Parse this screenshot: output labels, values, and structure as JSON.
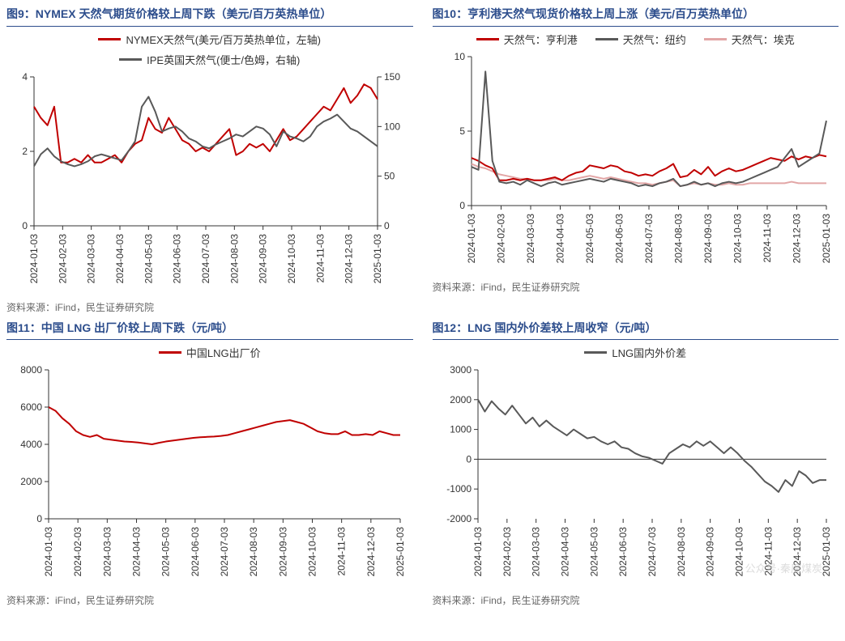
{
  "global": {
    "source_text": "资料来源：iFind，民生证券研究院",
    "watermark": "公众号·秦度煤炭",
    "xcats": [
      "2024-01-03",
      "2024-02-03",
      "2024-03-03",
      "2024-04-03",
      "2024-05-03",
      "2024-06-03",
      "2024-07-03",
      "2024-08-03",
      "2024-09-03",
      "2024-10-03",
      "2024-11-03",
      "2024-12-03",
      "2025-01-03"
    ],
    "axis_color": "#333333",
    "tick_color": "#333333",
    "font_axis": 12,
    "font_title": 14,
    "font_legend": 13,
    "line_width": 2
  },
  "chart9": {
    "title": "图9：NYMEX 天然气期货价格较上周下跌（美元/百万英热单位）",
    "type": "line-dual-axis",
    "legend": [
      {
        "label": "NYMEX天然气(美元/百万英热单位，左轴)",
        "color": "#c00000"
      },
      {
        "label": "IPE英国天然气(便士/色姆，右轴)",
        "color": "#595959"
      }
    ],
    "y_left": {
      "min": 0,
      "max": 4,
      "ticks": [
        0,
        2,
        4
      ]
    },
    "y_right": {
      "min": 0,
      "max": 150,
      "ticks": [
        0,
        50,
        100,
        150
      ]
    },
    "series": {
      "nymex": [
        3.2,
        2.9,
        2.7,
        3.2,
        1.7,
        1.7,
        1.8,
        1.7,
        1.9,
        1.7,
        1.7,
        1.8,
        1.9,
        1.7,
        2.0,
        2.2,
        2.3,
        2.9,
        2.6,
        2.5,
        2.9,
        2.6,
        2.3,
        2.2,
        2.0,
        2.1,
        2.0,
        2.2,
        2.4,
        2.6,
        1.9,
        2.0,
        2.2,
        2.1,
        2.2,
        2.0,
        2.3,
        2.6,
        2.3,
        2.4,
        2.6,
        2.8,
        3.0,
        3.2,
        3.1,
        3.4,
        3.7,
        3.3,
        3.5,
        3.8,
        3.7,
        3.4
      ],
      "ipe": [
        60,
        72,
        78,
        70,
        65,
        62,
        60,
        62,
        65,
        70,
        72,
        70,
        68,
        66,
        75,
        85,
        120,
        130,
        115,
        95,
        98,
        100,
        95,
        88,
        85,
        80,
        78,
        82,
        85,
        88,
        92,
        90,
        95,
        100,
        98,
        92,
        80,
        95,
        90,
        88,
        85,
        90,
        100,
        105,
        108,
        112,
        105,
        98,
        95,
        90,
        85,
        80
      ]
    },
    "background": "#ffffff"
  },
  "chart10": {
    "title": "图10：亨利港天然气现货价格较上周上涨（美元/百万英热单位）",
    "type": "line",
    "legend": [
      {
        "label": "天然气：亨利港",
        "color": "#c00000"
      },
      {
        "label": "天然气：纽约",
        "color": "#595959"
      },
      {
        "label": "天然气：埃克",
        "color": "#e2a6a6"
      }
    ],
    "y": {
      "min": 0,
      "max": 10,
      "ticks": [
        0,
        5,
        10
      ]
    },
    "series": {
      "henry": [
        3.2,
        3.0,
        2.7,
        2.5,
        1.7,
        1.7,
        1.8,
        1.7,
        1.8,
        1.7,
        1.7,
        1.8,
        1.9,
        1.7,
        2.0,
        2.2,
        2.3,
        2.7,
        2.6,
        2.5,
        2.7,
        2.6,
        2.3,
        2.2,
        2.0,
        2.1,
        2.0,
        2.3,
        2.5,
        2.8,
        1.9,
        2.0,
        2.4,
        2.1,
        2.6,
        2.0,
        2.3,
        2.5,
        2.3,
        2.4,
        2.6,
        2.8,
        3.0,
        3.2,
        3.1,
        3.0,
        3.3,
        3.1,
        3.3,
        3.2,
        3.4,
        3.3
      ],
      "ny": [
        2.6,
        2.4,
        9.0,
        3.0,
        1.6,
        1.5,
        1.6,
        1.4,
        1.7,
        1.5,
        1.3,
        1.5,
        1.6,
        1.4,
        1.5,
        1.6,
        1.7,
        1.8,
        1.7,
        1.6,
        1.8,
        1.7,
        1.6,
        1.5,
        1.3,
        1.4,
        1.3,
        1.5,
        1.6,
        1.8,
        1.3,
        1.4,
        1.6,
        1.4,
        1.5,
        1.3,
        1.5,
        1.6,
        1.5,
        1.6,
        1.8,
        2.0,
        2.2,
        2.4,
        2.6,
        3.2,
        3.8,
        2.6,
        2.9,
        3.2,
        3.5,
        5.7
      ],
      "eck": [
        2.8,
        2.6,
        2.5,
        2.3,
        2.1,
        2.0,
        1.9,
        1.8,
        1.8,
        1.7,
        1.7,
        1.7,
        1.8,
        1.7,
        1.7,
        1.8,
        1.9,
        2.0,
        1.9,
        1.8,
        1.9,
        1.8,
        1.7,
        1.6,
        1.5,
        1.5,
        1.4,
        1.5,
        1.6,
        1.7,
        1.3,
        1.4,
        1.5,
        1.4,
        1.5,
        1.4,
        1.4,
        1.5,
        1.4,
        1.4,
        1.5,
        1.5,
        1.5,
        1.5,
        1.5,
        1.5,
        1.6,
        1.5,
        1.5,
        1.5,
        1.5,
        1.5
      ]
    },
    "background": "#ffffff"
  },
  "chart11": {
    "title": "图11：中国 LNG 出厂价较上周下跌（元/吨）",
    "type": "line",
    "legend": [
      {
        "label": "中国LNG出厂价",
        "color": "#c00000"
      }
    ],
    "y": {
      "min": 0,
      "max": 8000,
      "ticks": [
        0,
        2000,
        4000,
        6000,
        8000
      ]
    },
    "series": {
      "lng": [
        6000,
        5800,
        5400,
        5100,
        4700,
        4500,
        4400,
        4500,
        4300,
        4250,
        4200,
        4150,
        4130,
        4100,
        4050,
        4000,
        4080,
        4150,
        4200,
        4250,
        4300,
        4350,
        4380,
        4400,
        4420,
        4450,
        4500,
        4600,
        4700,
        4800,
        4900,
        5000,
        5100,
        5200,
        5250,
        5300,
        5200,
        5100,
        4900,
        4700,
        4600,
        4550,
        4550,
        4700,
        4500,
        4500,
        4550,
        4500,
        4700,
        4600,
        4500,
        4500
      ]
    },
    "background": "#ffffff"
  },
  "chart12": {
    "title": "图12：LNG 国内外价差较上周收窄（元/吨）",
    "type": "line",
    "legend": [
      {
        "label": "LNG国内外价差",
        "color": "#595959"
      }
    ],
    "y": {
      "min": -2000,
      "max": 3000,
      "ticks": [
        -2000,
        -1000,
        0,
        1000,
        2000,
        3000
      ]
    },
    "series": {
      "diff": [
        2000,
        1600,
        1950,
        1700,
        1500,
        1800,
        1500,
        1200,
        1400,
        1100,
        1300,
        1100,
        950,
        800,
        1000,
        850,
        700,
        750,
        600,
        500,
        600,
        400,
        350,
        200,
        100,
        50,
        -50,
        -150,
        200,
        350,
        500,
        400,
        600,
        450,
        600,
        400,
        200,
        400,
        200,
        -50,
        -250,
        -500,
        -750,
        -900,
        -1100,
        -700,
        -900,
        -400,
        -550,
        -800,
        -700,
        -700
      ]
    },
    "background": "#ffffff"
  }
}
